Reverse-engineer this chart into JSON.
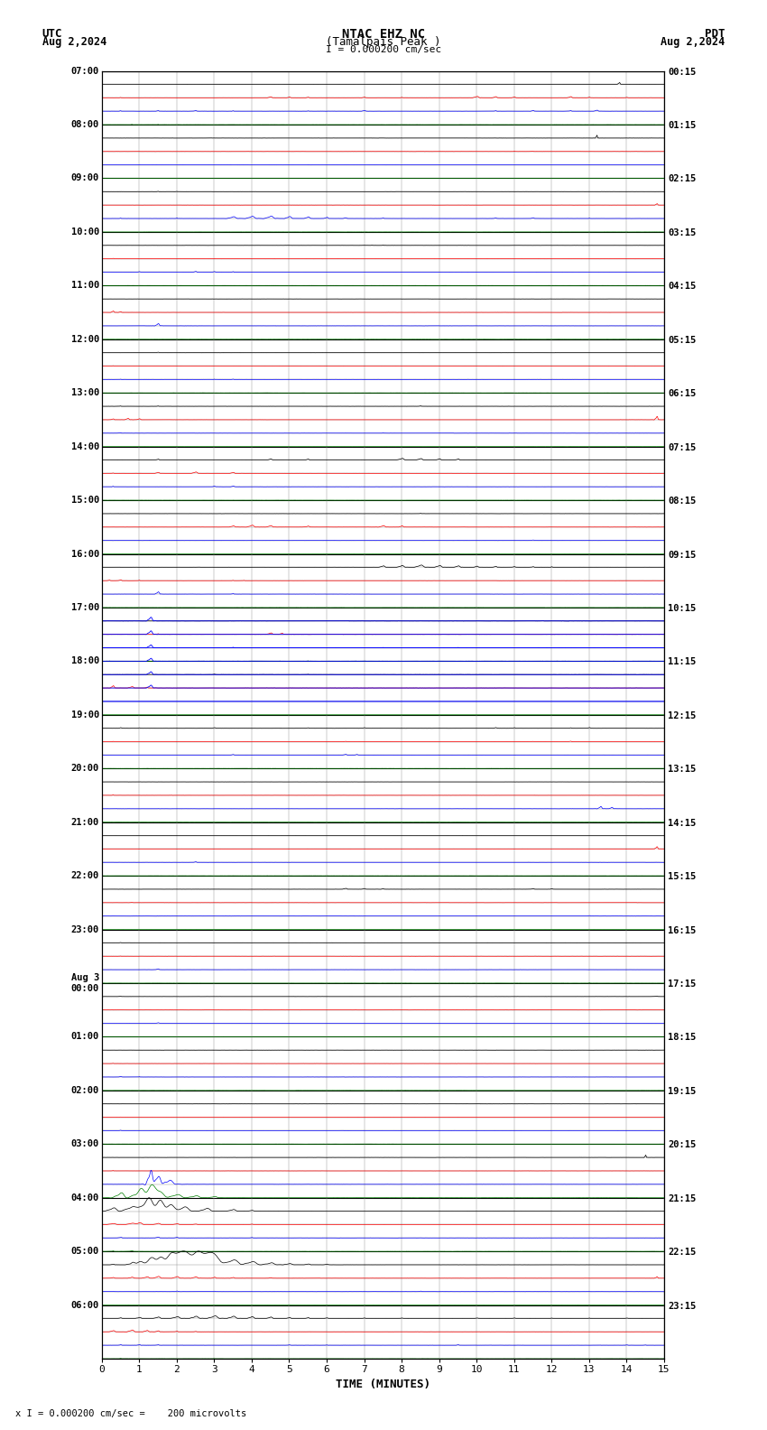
{
  "title_line1": "NTAC EHZ NC",
  "title_line2": "(Tamalpais Peak )",
  "scale_label": "I = 0.000200 cm/sec",
  "left_date_line1": "UTC",
  "left_date_line2": "Aug 2,2024",
  "right_date_line1": "PDT",
  "right_date_line2": "Aug 2,2024",
  "bottom_label": "TIME (MINUTES)",
  "bottom_note": "x I = 0.000200 cm/sec =    200 microvolts",
  "num_rows": 96,
  "minutes_per_row": 15,
  "bg_color": "#ffffff",
  "grid_color": "#888888",
  "hour_line_color": "#000000",
  "subrow_line_color": "#888888",
  "left_labels_every_4": [
    "07:00",
    "08:00",
    "09:00",
    "10:00",
    "11:00",
    "12:00",
    "13:00",
    "14:00",
    "15:00",
    "16:00",
    "17:00",
    "18:00",
    "19:00",
    "20:00",
    "21:00",
    "22:00",
    "23:00",
    "Aug 3\n00:00",
    "01:00",
    "02:00",
    "03:00",
    "04:00",
    "05:00",
    "06:00"
  ],
  "right_labels_every_4": [
    "00:15",
    "01:15",
    "02:15",
    "03:15",
    "04:15",
    "05:15",
    "06:15",
    "07:15",
    "08:15",
    "09:15",
    "10:15",
    "11:15",
    "12:15",
    "13:15",
    "14:15",
    "15:15",
    "16:15",
    "17:15",
    "18:15",
    "19:15",
    "20:15",
    "21:15",
    "22:15",
    "23:15"
  ],
  "x_ticks": [
    0,
    1,
    2,
    3,
    4,
    5,
    6,
    7,
    8,
    9,
    10,
    11,
    12,
    13,
    14,
    15
  ],
  "row_colors_pattern": [
    "#000000",
    "#ff0000",
    "#0000ff",
    "#008000"
  ],
  "flat_blue_subrow": 46,
  "flat_green_subrow": 47
}
